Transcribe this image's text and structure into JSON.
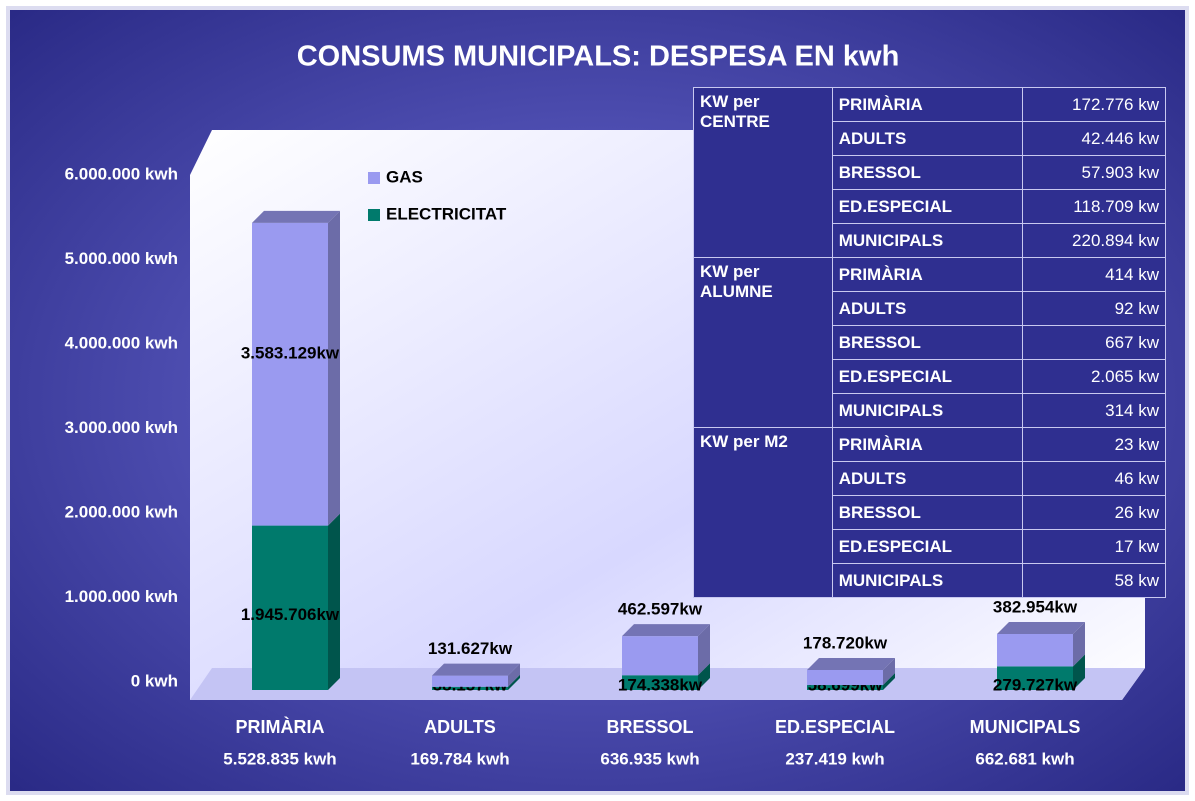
{
  "chart_data": {
    "type": "bar",
    "stacked": true,
    "title": "CONSUMS MUNICIPALS: DESPESA EN kwh",
    "categories": [
      "PRIMÀRIA",
      "ADULTS",
      "BRESSOL",
      "ED.ESPECIAL",
      "MUNICIPALS"
    ],
    "category_totals": [
      "5.528.835 kwh",
      "169.784 kwh",
      "636.935 kwh",
      "237.419 kwh",
      "662.681 kwh"
    ],
    "series": [
      {
        "name": "ELECTRICITAT",
        "color": "#007a6c",
        "values": [
          1945706,
          38157,
          174338,
          58699,
          279727
        ],
        "value_labels": [
          "1.945.706kw",
          "38.157kw",
          "174.338kw",
          "58.699kw",
          "279.727kw"
        ]
      },
      {
        "name": "GAS",
        "color": "#9a9af0",
        "values": [
          3583129,
          131627,
          462597,
          178720,
          382954
        ],
        "value_labels": [
          "3.583.129kw",
          "131.627kw",
          "462.597kw",
          "178.720kw",
          "382.954kw"
        ]
      }
    ],
    "ylim": [
      0,
      6000000
    ],
    "yticks": [
      {
        "value": 0,
        "label": "0 kwh"
      },
      {
        "value": 1000000,
        "label": "1.000.000 kwh"
      },
      {
        "value": 2000000,
        "label": "2.000.000 kwh"
      },
      {
        "value": 3000000,
        "label": "3.000.000 kwh"
      },
      {
        "value": 4000000,
        "label": "4.000.000 kwh"
      },
      {
        "value": 5000000,
        "label": "5.000.000 kwh"
      },
      {
        "value": 6000000,
        "label": "6.000.000 kwh"
      }
    ],
    "legend": "top-left",
    "grid": false
  },
  "table": {
    "groups": [
      {
        "label": "KW per CENTRE",
        "rows": [
          [
            "PRIMÀRIA",
            "172.776 kw"
          ],
          [
            "ADULTS",
            "42.446 kw"
          ],
          [
            "BRESSOL",
            "57.903 kw"
          ],
          [
            "ED.ESPECIAL",
            "118.709 kw"
          ],
          [
            "MUNICIPALS",
            "220.894 kw"
          ]
        ]
      },
      {
        "label": "KW per ALUMNE",
        "rows": [
          [
            "PRIMÀRIA",
            "414 kw"
          ],
          [
            "ADULTS",
            "92 kw"
          ],
          [
            "BRESSOL",
            "667 kw"
          ],
          [
            "ED.ESPECIAL",
            "2.065 kw"
          ],
          [
            "MUNICIPALS",
            "314 kw"
          ]
        ]
      },
      {
        "label": "KW per M2",
        "rows": [
          [
            "PRIMÀRIA",
            "23 kw"
          ],
          [
            "ADULTS",
            "46 kw"
          ],
          [
            "BRESSOL",
            "26 kw"
          ],
          [
            "ED.ESPECIAL",
            "17 kw"
          ],
          [
            "MUNICIPALS",
            "58 kw"
          ]
        ]
      }
    ]
  }
}
